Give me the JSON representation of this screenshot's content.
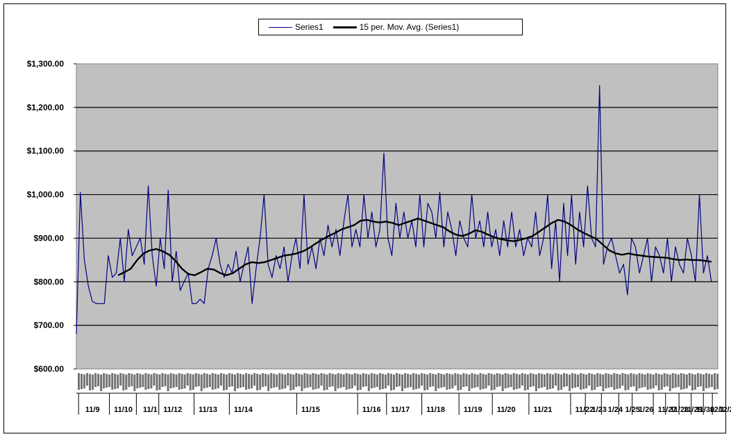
{
  "colors": {
    "plot_bg": "#c0c0c0",
    "series1": "#000080",
    "moving_avg": "#000000",
    "grid": "#000000"
  },
  "legend": {
    "series1_label": "Series1",
    "moving_avg_label": "15 per. Mov. Avg. (Series1)"
  },
  "chart_data": {
    "type": "line",
    "title": "",
    "xlabel": "",
    "ylabel": "",
    "ylim": [
      600,
      1300
    ],
    "yticks": [
      "$600.00",
      "$700.00",
      "$800.00",
      "$900.00",
      "$1,000.00",
      "$1,100.00",
      "$1,200.00",
      "$1,300.00"
    ],
    "ytick_values": [
      600,
      700,
      800,
      900,
      1000,
      1100,
      1200,
      1300
    ],
    "grid": true,
    "legend_position": "top-center",
    "x_date_labels": [
      "11/9",
      "11/10",
      "11/1",
      "11/12",
      "11/13",
      "11/14",
      "11/15",
      "11/16",
      "11/17",
      "11/18",
      "11/19",
      "11/20",
      "11/21",
      "11/22",
      "1/23",
      "1/24",
      "1/25",
      "1/26",
      "11/27",
      "11/28",
      "11/29",
      "11/30",
      "12/1",
      "12/2"
    ],
    "series": [
      {
        "name": "Series1",
        "values": [
          680,
          1005,
          850,
          790,
          755,
          750,
          750,
          750,
          860,
          810,
          820,
          900,
          800,
          920,
          860,
          880,
          900,
          840,
          1020,
          860,
          790,
          900,
          830,
          1010,
          800,
          870,
          780,
          800,
          820,
          750,
          750,
          760,
          750,
          830,
          860,
          900,
          840,
          810,
          840,
          820,
          870,
          800,
          840,
          880,
          750,
          830,
          900,
          1000,
          840,
          810,
          860,
          830,
          880,
          800,
          860,
          900,
          830,
          1000,
          840,
          880,
          830,
          900,
          860,
          930,
          880,
          920,
          860,
          940,
          1000,
          880,
          920,
          880,
          1000,
          900,
          960,
          880,
          920,
          1095,
          900,
          860,
          980,
          900,
          960,
          900,
          940,
          880,
          1000,
          880,
          980,
          960,
          900,
          1005,
          880,
          960,
          920,
          860,
          940,
          900,
          880,
          1000,
          900,
          940,
          880,
          960,
          880,
          920,
          860,
          940,
          880,
          960,
          880,
          920,
          860,
          900,
          880,
          960,
          860,
          900,
          1000,
          830,
          940,
          800,
          980,
          860,
          1000,
          840,
          960,
          880,
          1020,
          900,
          880,
          1250,
          840,
          880,
          900,
          860,
          820,
          840,
          770,
          900,
          880,
          820,
          860,
          900,
          800,
          880,
          860,
          820,
          900,
          800,
          880,
          840,
          820,
          900,
          860,
          800,
          1000,
          820,
          860,
          800
        ]
      },
      {
        "name": "15 per. Mov. Avg. (Series1)",
        "values": [
          815,
          822,
          830,
          850,
          865,
          872,
          875,
          870,
          862,
          848,
          830,
          818,
          815,
          822,
          830,
          828,
          820,
          815,
          820,
          830,
          840,
          845,
          843,
          845,
          850,
          855,
          860,
          862,
          865,
          870,
          878,
          888,
          897,
          905,
          912,
          920,
          925,
          930,
          940,
          942,
          938,
          936,
          938,
          935,
          930,
          935,
          940,
          945,
          940,
          935,
          930,
          925,
          915,
          908,
          905,
          910,
          918,
          915,
          908,
          902,
          898,
          895,
          893,
          896,
          900,
          905,
          915,
          925,
          935,
          942,
          938,
          930,
          920,
          912,
          905,
          898,
          885,
          872,
          865,
          862,
          865,
          862,
          860,
          858,
          857,
          856,
          855,
          852,
          850,
          851,
          850,
          850,
          848,
          846
        ]
      }
    ]
  }
}
